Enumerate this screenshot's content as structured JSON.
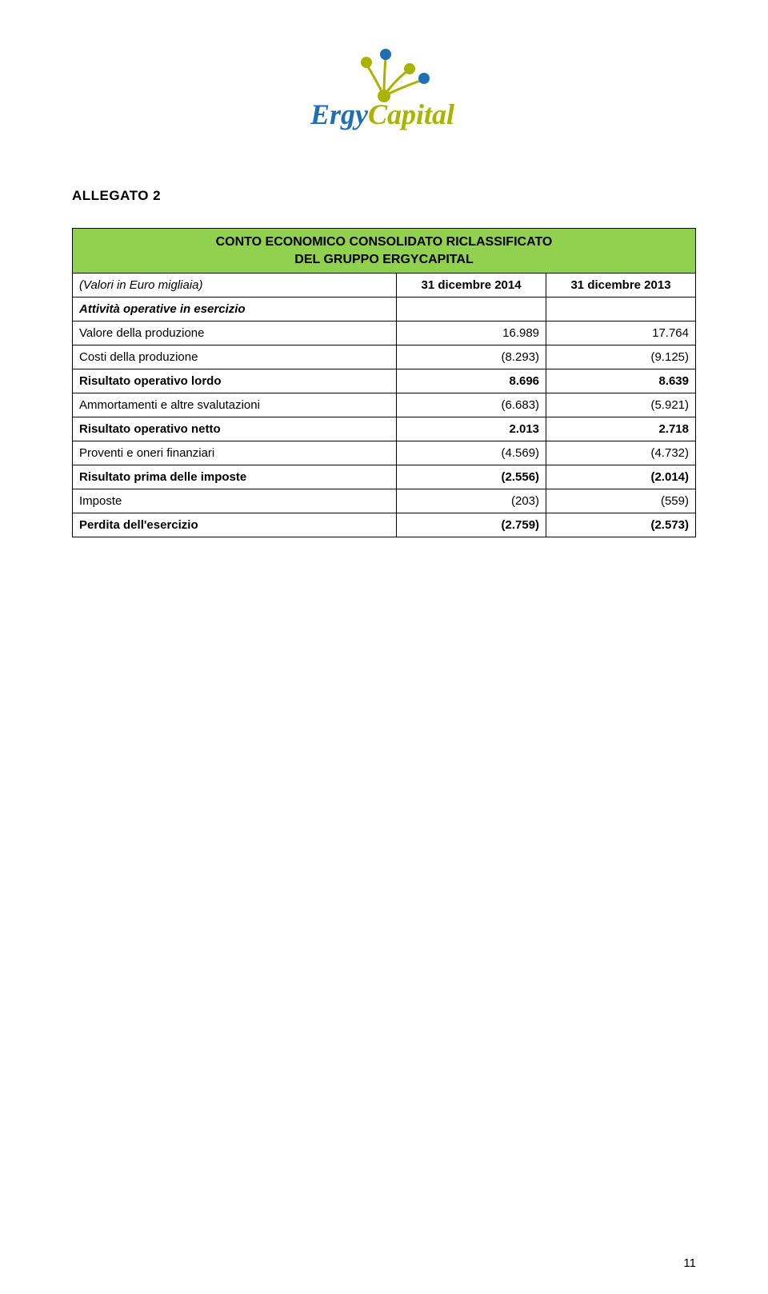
{
  "logo": {
    "brand_left": "Ergy",
    "brand_right": "Capital",
    "left_color": "#1f6fb2",
    "right_color": "#a8b400",
    "dot_colors": [
      "#a8b400",
      "#1f6fb2",
      "#a8b400",
      "#1f6fb2",
      "#a8b400"
    ]
  },
  "document": {
    "section_label": "ALLEGATO 2",
    "page_number": "11"
  },
  "table": {
    "title_line1": "CONTO ECONOMICO CONSOLIDATO RICLASSIFICATO",
    "title_line2": "DEL GRUPPO ERGYCAPITAL",
    "header_bg": "#92d050",
    "col_meta": "(Valori in Euro migliaia)",
    "col1": "31 dicembre 2014",
    "col2": "31 dicembre 2013",
    "rows": [
      {
        "label": "Attività operative in esercizio",
        "v1": "",
        "v2": "",
        "style": "section"
      },
      {
        "label": "Valore della produzione",
        "v1": "16.989",
        "v2": "17.764",
        "style": "normal"
      },
      {
        "label": "Costi della produzione",
        "v1": "(8.293)",
        "v2": "(9.125)",
        "style": "normal"
      },
      {
        "label": "Risultato operativo lordo",
        "v1": "8.696",
        "v2": "8.639",
        "style": "bold"
      },
      {
        "label": "Ammortamenti e altre svalutazioni",
        "v1": "(6.683)",
        "v2": "(5.921)",
        "style": "normal"
      },
      {
        "label": "Risultato operativo netto",
        "v1": "2.013",
        "v2": "2.718",
        "style": "bold"
      },
      {
        "label": "Proventi e oneri finanziari",
        "v1": "(4.569)",
        "v2": "(4.732)",
        "style": "normal"
      },
      {
        "label": "Risultato prima delle imposte",
        "v1": "(2.556)",
        "v2": "(2.014)",
        "style": "bold"
      },
      {
        "label": "Imposte",
        "v1": "(203)",
        "v2": "(559)",
        "style": "normal"
      },
      {
        "label": "Perdita dell'esercizio",
        "v1": "(2.759)",
        "v2": "(2.573)",
        "style": "bold"
      }
    ]
  }
}
